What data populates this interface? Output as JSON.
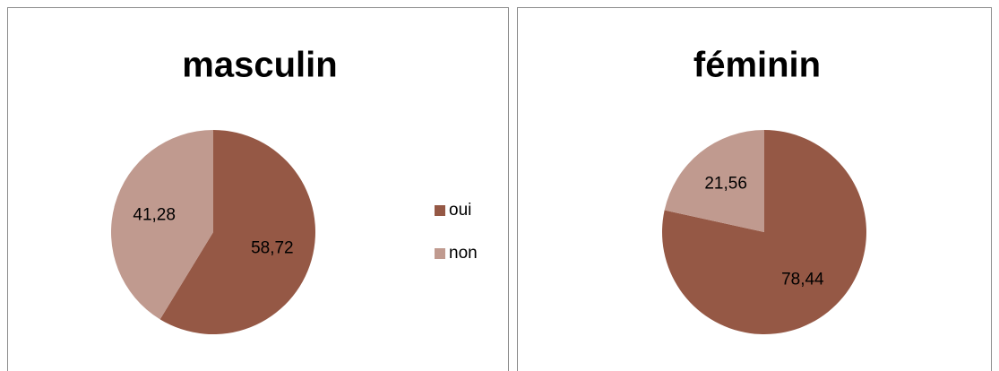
{
  "chart_data": [
    {
      "type": "pie",
      "title": "masculin",
      "categories": [
        "oui",
        "non"
      ],
      "values": [
        58.72,
        41.28
      ],
      "value_labels": [
        "58,72",
        "41,28"
      ],
      "colors": [
        "#955845",
        "#c09a8f"
      ],
      "legend": "right"
    },
    {
      "type": "pie",
      "title": "féminin",
      "values": [
        78.44,
        21.56
      ],
      "value_labels": [
        "78,44",
        "21,56"
      ],
      "colors": [
        "#955845",
        "#c09a8f"
      ]
    }
  ]
}
